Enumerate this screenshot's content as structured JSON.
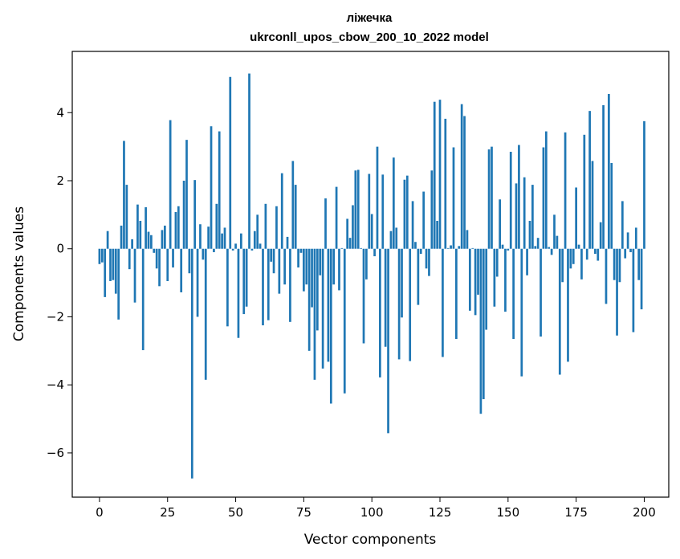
{
  "chart_data": {
    "type": "bar",
    "title": "ліжечка",
    "subtitle": "ukrconll_upos_cbow_200_10_2022 model",
    "xlabel": "Vector components",
    "ylabel": "Components values",
    "xlim": [
      -10,
      209
    ],
    "ylim": [
      -7.3,
      5.8
    ],
    "xticks": [
      0,
      25,
      50,
      75,
      100,
      125,
      150,
      175,
      200
    ],
    "yticks": [
      -6,
      -4,
      -2,
      0,
      2,
      4
    ],
    "grid": false,
    "bar_color": "#1f77b4",
    "values": [
      -0.45,
      -0.4,
      -1.42,
      0.52,
      -0.95,
      -0.92,
      -1.32,
      -2.08,
      0.68,
      3.17,
      1.88,
      -0.6,
      0.28,
      -1.58,
      1.3,
      0.82,
      -2.98,
      1.22,
      0.5,
      0.4,
      -0.12,
      -0.58,
      -1.1,
      0.55,
      0.68,
      -0.95,
      3.78,
      -0.55,
      1.08,
      1.25,
      -1.28,
      2.0,
      3.2,
      -0.72,
      -6.75,
      2.02,
      -2.0,
      0.72,
      -0.32,
      -3.85,
      0.65,
      3.6,
      -0.1,
      1.32,
      3.45,
      0.45,
      0.62,
      -2.28,
      5.05,
      -0.05,
      0.15,
      -2.62,
      0.45,
      -1.92,
      -1.7,
      5.15,
      -0.05,
      0.52,
      1.0,
      0.15,
      -2.25,
      1.32,
      -2.1,
      -0.38,
      -0.72,
      1.25,
      -1.32,
      2.22,
      -1.05,
      0.35,
      -2.15,
      2.58,
      1.88,
      -0.55,
      -0.12,
      -1.25,
      -1.05,
      -3.0,
      -1.72,
      -3.85,
      -2.4,
      -0.78,
      -3.52,
      1.48,
      -3.32,
      -4.55,
      -1.05,
      1.82,
      -1.22,
      0.02,
      -4.25,
      0.88,
      0.32,
      1.28,
      2.3,
      2.32,
      0.02,
      -2.78,
      -0.9,
      2.2,
      1.02,
      -0.22,
      3.0,
      -3.78,
      2.18,
      -2.88,
      -5.42,
      0.52,
      2.68,
      0.62,
      -3.25,
      -2.02,
      2.03,
      2.15,
      -3.3,
      1.4,
      0.2,
      -1.65,
      -0.15,
      1.68,
      -0.58,
      -0.8,
      2.3,
      4.32,
      0.82,
      4.38,
      -3.18,
      3.82,
      0.02,
      0.1,
      2.98,
      -2.65,
      0.08,
      4.25,
      3.9,
      0.55,
      -1.82,
      0.02,
      -1.95,
      -1.35,
      -4.85,
      -4.42,
      -2.38,
      2.92,
      3.0,
      -1.7,
      -0.82,
      1.45,
      0.12,
      -1.85,
      -0.05,
      2.85,
      -2.65,
      1.92,
      3.05,
      -3.75,
      2.1,
      -0.78,
      0.82,
      1.88,
      0.08,
      0.32,
      -2.58,
      2.98,
      3.45,
      0.05,
      -0.18,
      1.0,
      0.38,
      -3.7,
      -0.98,
      3.42,
      -3.32,
      -0.58,
      -0.45,
      1.8,
      0.12,
      -0.9,
      3.35,
      -0.32,
      4.05,
      2.58,
      -0.15,
      -0.35,
      0.78,
      4.22,
      -1.62,
      4.55,
      2.52,
      -0.92,
      -2.55,
      -0.98,
      1.4,
      -0.28,
      0.48,
      -0.1,
      -2.45,
      0.62,
      -0.92,
      -1.78,
      3.75
    ]
  }
}
